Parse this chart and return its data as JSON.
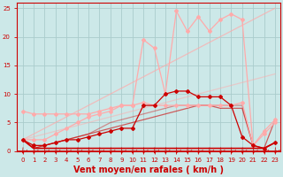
{
  "bg_color": "#cce8e8",
  "grid_color": "#aacccc",
  "xlabel": "Vent moyen/en rafales ( km/h )",
  "xlabel_color": "#cc0000",
  "xlabel_fontsize": 7,
  "tick_color": "#cc0000",
  "axis_color": "#cc0000",
  "xlim": [
    -0.5,
    23.5
  ],
  "ylim": [
    0,
    26
  ],
  "yticks": [
    0,
    5,
    10,
    15,
    20,
    25
  ],
  "xticks": [
    0,
    1,
    2,
    3,
    4,
    5,
    6,
    7,
    8,
    9,
    10,
    11,
    12,
    13,
    14,
    15,
    16,
    17,
    18,
    19,
    20,
    21,
    22,
    23
  ],
  "lines": [
    {
      "x": [
        0,
        1,
        2,
        3,
        4,
        5,
        6,
        7,
        8,
        9,
        10,
        11,
        12,
        13,
        14,
        15,
        16,
        17,
        18,
        19,
        20,
        21,
        22,
        23
      ],
      "y": [
        2,
        3,
        4,
        5,
        6,
        7,
        8,
        9,
        10,
        11,
        12,
        13,
        14,
        15,
        16,
        17,
        18,
        19,
        20,
        21,
        22,
        23,
        24,
        25
      ],
      "color": "#ffaaaa",
      "linewidth": 0.9,
      "marker": null,
      "markersize": 0,
      "alpha": 0.7
    },
    {
      "x": [
        0,
        1,
        2,
        3,
        4,
        5,
        6,
        7,
        8,
        9,
        10,
        11,
        12,
        13,
        14,
        15,
        16,
        17,
        18,
        19,
        20,
        21,
        22,
        23
      ],
      "y": [
        2,
        2,
        2,
        3,
        4,
        5,
        6,
        6.5,
        7,
        8,
        8,
        19.5,
        18,
        10,
        24.5,
        21,
        23.5,
        21,
        23,
        24,
        23,
        1,
        3,
        5
      ],
      "color": "#ffaaaa",
      "linewidth": 0.9,
      "marker": "D",
      "markersize": 2.0,
      "alpha": 1.0
    },
    {
      "x": [
        0,
        1,
        2,
        3,
        4,
        5,
        6,
        7,
        8,
        9,
        10,
        11,
        12,
        13,
        14,
        15,
        16,
        17,
        18,
        19,
        20,
        21,
        22,
        23
      ],
      "y": [
        7,
        6.5,
        6.5,
        6.5,
        6.5,
        6.5,
        6.5,
        7,
        7.5,
        8,
        8,
        8.5,
        8,
        8,
        8,
        8,
        8,
        8,
        8,
        8,
        8.5,
        1,
        3.5,
        5.5
      ],
      "color": "#ffaaaa",
      "linewidth": 0.9,
      "marker": "D",
      "markersize": 2.0,
      "alpha": 1.0
    },
    {
      "x": [
        0,
        1,
        2,
        3,
        4,
        5,
        6,
        7,
        8,
        9,
        10,
        11,
        12,
        13,
        14,
        15,
        16,
        17,
        18,
        19,
        20,
        21,
        22,
        23
      ],
      "y": [
        2,
        2.5,
        3,
        3.5,
        4,
        4.5,
        5,
        5.5,
        6,
        6.5,
        7,
        7.5,
        8,
        8.5,
        9,
        9.5,
        10,
        10.5,
        11,
        11.5,
        12,
        12.5,
        13,
        13.5
      ],
      "color": "#ffaaaa",
      "linewidth": 0.9,
      "marker": null,
      "markersize": 0,
      "alpha": 0.5
    },
    {
      "x": [
        0,
        1,
        2,
        3,
        4,
        5,
        6,
        7,
        8,
        9,
        10,
        11,
        12,
        13,
        14,
        15,
        16,
        17,
        18,
        19,
        20,
        21,
        22,
        23
      ],
      "y": [
        2,
        1,
        1,
        1.5,
        2,
        2,
        2.5,
        3,
        3.5,
        4,
        4,
        8,
        8,
        10,
        10.5,
        10.5,
        9.5,
        9.5,
        9.5,
        8,
        2.5,
        1,
        0.5,
        1.5
      ],
      "color": "#cc0000",
      "linewidth": 0.9,
      "marker": "D",
      "markersize": 2.0,
      "alpha": 1.0
    },
    {
      "x": [
        0,
        1,
        2,
        3,
        4,
        5,
        6,
        7,
        8,
        9,
        10,
        11,
        12,
        13,
        14,
        15,
        16,
        17,
        18,
        19,
        20,
        21,
        22,
        23
      ],
      "y": [
        2,
        0.5,
        0.5,
        0.5,
        0.5,
        0.5,
        0.5,
        0.5,
        0.5,
        0.5,
        0.5,
        0.5,
        0.5,
        0.5,
        0.5,
        0.5,
        0.5,
        0.5,
        0.5,
        0.5,
        0.5,
        0.5,
        0.5,
        1.5
      ],
      "color": "#cc0000",
      "linewidth": 1.2,
      "marker": null,
      "markersize": 0,
      "alpha": 1.0
    },
    {
      "x": [
        0,
        1,
        2,
        3,
        4,
        5,
        6,
        7,
        8,
        9,
        10,
        11,
        12,
        13,
        14,
        15,
        16,
        17,
        18,
        19,
        20,
        21,
        22,
        23
      ],
      "y": [
        2,
        0.5,
        1,
        1.5,
        2,
        2.5,
        3,
        3.5,
        4,
        4.5,
        5,
        5.5,
        6,
        6.5,
        7,
        7.5,
        8,
        8,
        7.5,
        7.5,
        7.5,
        1,
        0.5,
        5.5
      ],
      "color": "#cc0000",
      "linewidth": 0.9,
      "marker": null,
      "markersize": 0,
      "alpha": 0.6
    },
    {
      "x": [
        0,
        1,
        2,
        3,
        4,
        5,
        6,
        7,
        8,
        9,
        10,
        11,
        12,
        13,
        14,
        15,
        16,
        17,
        18,
        19,
        20,
        21,
        22,
        23
      ],
      "y": [
        2,
        0.5,
        1,
        1.5,
        2,
        2.5,
        3,
        4,
        5,
        5.5,
        6,
        6.5,
        7,
        7.5,
        8,
        8,
        8,
        8,
        8,
        8,
        8,
        1,
        0.5,
        1.5
      ],
      "color": "#cc0000",
      "linewidth": 0.9,
      "marker": null,
      "markersize": 0,
      "alpha": 0.4
    }
  ],
  "arrow_color": "#cc0000"
}
